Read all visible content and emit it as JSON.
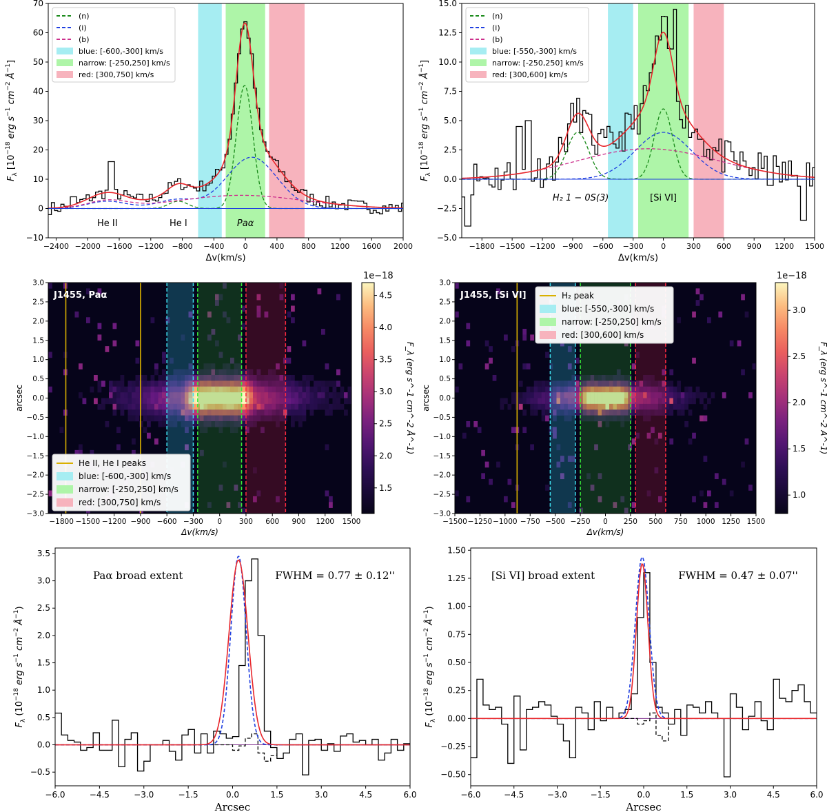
{
  "chart_data": [
    {
      "id": "p1",
      "type": "line",
      "xlabel": "Δv(km/s)",
      "ylabel": "F_λ [10^-18 erg s^-1 cm^-2 Å^-1]",
      "xlim": [
        -2500,
        2000
      ],
      "ylim": [
        -10,
        70
      ],
      "xticks": [
        -2400,
        -2000,
        -1600,
        -1200,
        -800,
        -400,
        0,
        400,
        800,
        1200,
        1600,
        2000
      ],
      "yticks": [
        -10,
        0,
        10,
        20,
        30,
        40,
        50,
        60,
        70
      ],
      "bands": [
        {
          "name": "blue",
          "range": [
            -600,
            -300
          ],
          "color": "#a6edf2"
        },
        {
          "name": "narrow",
          "range": [
            -250,
            250
          ],
          "color": "#aef5a8"
        },
        {
          "name": "red",
          "range": [
            300,
            750
          ],
          "color": "#f7b3bd"
        }
      ],
      "legend": {
        "position": "top-left",
        "entries": [
          {
            "label": "(n)",
            "kind": "dashed",
            "color": "#1a8a1a"
          },
          {
            "label": "(i)",
            "kind": "dashed",
            "color": "#1f3fe0"
          },
          {
            "label": "(b)",
            "kind": "dashed",
            "color": "#cc2f8c"
          },
          {
            "label": "blue: [-600,-300] km/s",
            "kind": "patch",
            "color": "#a6edf2"
          },
          {
            "label": "narrow: [-250,250] km/s",
            "kind": "patch",
            "color": "#aef5a8"
          },
          {
            "label": "red: [300,750] km/s",
            "kind": "patch",
            "color": "#f7b3bd"
          }
        ]
      },
      "annotations": [
        {
          "text": "He II",
          "x": -1750,
          "y": -5
        },
        {
          "text": "He I",
          "x": -850,
          "y": -5
        },
        {
          "text": "Paα",
          "x": 0,
          "y": -5
        }
      ],
      "components": [
        {
          "name": "n",
          "color": "#1a8a1a",
          "gaussians": [
            {
              "mu": -10,
              "sigma": 105,
              "amp": 42
            },
            {
              "mu": -850,
              "sigma": 120,
              "amp": 2.5
            }
          ]
        },
        {
          "name": "i",
          "color": "#1f3fe0",
          "gaussians": [
            {
              "mu": 80,
              "sigma": 320,
              "amp": 17.5
            },
            {
              "mu": -870,
              "sigma": 250,
              "amp": 3
            },
            {
              "mu": -1750,
              "sigma": 250,
              "amp": 2.5
            }
          ]
        },
        {
          "name": "b",
          "color": "#cc2f8c",
          "gaussians": [
            {
              "mu": -50,
              "sigma": 800,
              "amp": 4.5
            },
            {
              "mu": -1750,
              "sigma": 250,
              "amp": 2.5
            }
          ]
        }
      ],
      "total_color": "#e8262b",
      "data_seed": 7,
      "noise": 2.2,
      "step_width": 40,
      "data_spikes": [
        [
          -1720,
          16
        ],
        [
          -1300,
          3
        ],
        [
          -2200,
          4
        ]
      ]
    },
    {
      "id": "p2",
      "type": "line",
      "xlabel": "Δv(km/s)",
      "ylabel": "F_λ [10^-18 erg s^-1 cm^-2 Å^-1]",
      "xlim": [
        -2000,
        1500
      ],
      "ylim": [
        -5,
        15
      ],
      "xticks": [
        -1800,
        -1500,
        -1200,
        -900,
        -600,
        -300,
        0,
        300,
        600,
        900,
        1200,
        1500
      ],
      "yticks": [
        -5.0,
        -2.5,
        0.0,
        2.5,
        5.0,
        7.5,
        10.0,
        12.5,
        15.0
      ],
      "bands": [
        {
          "name": "blue",
          "range": [
            -550,
            -300
          ],
          "color": "#a6edf2"
        },
        {
          "name": "narrow",
          "range": [
            -250,
            250
          ],
          "color": "#aef5a8"
        },
        {
          "name": "red",
          "range": [
            300,
            600
          ],
          "color": "#f7b3bd"
        }
      ],
      "legend": {
        "position": "top-left",
        "entries": [
          {
            "label": "(n)",
            "kind": "dashed",
            "color": "#1a8a1a"
          },
          {
            "label": "(i)",
            "kind": "dashed",
            "color": "#1f3fe0"
          },
          {
            "label": "(b)",
            "kind": "dashed",
            "color": "#cc2f8c"
          },
          {
            "label": "blue: [-550,-300] km/s",
            "kind": "patch",
            "color": "#a6edf2"
          },
          {
            "label": "narrow: [-250,250] km/s",
            "kind": "patch",
            "color": "#aef5a8"
          },
          {
            "label": "red: [300,600] km/s",
            "kind": "patch",
            "color": "#f7b3bd"
          }
        ]
      },
      "annotations": [
        {
          "text": "H₂ 1 − 0S(3)",
          "x": -820,
          "y": -1.6
        },
        {
          "text": "[Si VI]",
          "x": 0,
          "y": -1.6
        }
      ],
      "components": [
        {
          "name": "n",
          "color": "#1a8a1a",
          "gaussians": [
            {
              "mu": 0,
              "sigma": 90,
              "amp": 6
            },
            {
              "mu": -850,
              "sigma": 110,
              "amp": 4
            }
          ]
        },
        {
          "name": "i",
          "color": "#1f3fe0",
          "gaussians": [
            {
              "mu": 0,
              "sigma": 280,
              "amp": 4
            }
          ]
        },
        {
          "name": "b",
          "color": "#cc2f8c",
          "gaussians": [
            {
              "mu": -150,
              "sigma": 700,
              "amp": 2.6
            }
          ]
        }
      ],
      "total_color": "#e8262b",
      "data_seed": 11,
      "noise": 1.6,
      "step_width": 30,
      "data_spikes": [
        [
          -1350,
          5
        ],
        [
          -1450,
          4.5
        ],
        [
          -1950,
          -4
        ],
        [
          1380,
          -3.5
        ],
        [
          100,
          14.5
        ]
      ]
    },
    {
      "id": "p3",
      "type": "heatmap",
      "title_label": "J1455, Paα",
      "xlabel": "Δv(km/s)",
      "ylabel": "arcsec",
      "xlim": [
        -1950,
        1500
      ],
      "ylim": [
        -3.0,
        3.0
      ],
      "xticks": [
        -1800,
        -1500,
        -1200,
        -900,
        -600,
        -300,
        0,
        300,
        600,
        900,
        1200,
        1500
      ],
      "yticks": [
        -3.0,
        -2.5,
        -2.0,
        -1.5,
        -1.0,
        -0.5,
        0.0,
        0.5,
        1.0,
        1.5,
        2.0,
        2.5,
        3.0
      ],
      "colorbar": {
        "exponent": "1e−18",
        "label": "F_λ (erg s^-1 cm^-2 Å^-1)",
        "ticks": [
          1.5,
          2.0,
          2.5,
          3.0,
          3.5,
          4.0,
          4.5
        ],
        "range": [
          1.1,
          4.7
        ]
      },
      "peak_lines": [
        -1750,
        -900
      ],
      "peak_line_label": "He II, He I peaks",
      "bands": [
        {
          "name": "blue",
          "range": [
            -600,
            -300
          ],
          "color": "#2cc0d8",
          "line": "#3ee0f0"
        },
        {
          "name": "narrow",
          "range": [
            -250,
            250
          ],
          "color": "#2aa52a",
          "line": "#38ef38"
        },
        {
          "name": "red",
          "range": [
            300,
            750
          ],
          "color": "#b0203c",
          "line": "#ff2a40"
        }
      ],
      "legend": {
        "position": "bottom-left",
        "entries": [
          {
            "label": "He II, He I peaks",
            "kind": "line",
            "color": "#d9b000"
          },
          {
            "label": "blue: [-600,-300] km/s",
            "kind": "patch",
            "color": "#a6edf2"
          },
          {
            "label": "narrow: [-250,250] km/s",
            "kind": "patch",
            "color": "#aef5a8"
          },
          {
            "label": "red: [300,750] km/s",
            "kind": "patch",
            "color": "#f7b3bd"
          }
        ]
      },
      "emission": {
        "center_v": 0,
        "width_v": 380,
        "wing_v": 650,
        "spatial_sigma": 0.33,
        "seed": 3
      }
    },
    {
      "id": "p4",
      "type": "heatmap",
      "title_label": "J1455, [Si VI]",
      "xlabel": "Δv(km/s)",
      "ylabel": "arcsec",
      "xlim": [
        -1500,
        1500
      ],
      "ylim": [
        -3.0,
        3.0
      ],
      "xticks": [
        -1500,
        -1250,
        -1000,
        -750,
        -500,
        -250,
        0,
        250,
        500,
        750,
        1000,
        1250,
        1500
      ],
      "yticks": [
        -3.0,
        -2.5,
        -2.0,
        -1.5,
        -1.0,
        -0.5,
        0.0,
        0.5,
        1.0,
        1.5,
        2.0,
        2.5,
        3.0
      ],
      "colorbar": {
        "exponent": "1e−18",
        "label": "F_λ (erg s^-1 cm^-2 Å^-1)",
        "ticks": [
          1.0,
          1.5,
          2.0,
          2.5,
          3.0
        ],
        "range": [
          0.8,
          3.3
        ]
      },
      "peak_lines": [
        -880
      ],
      "peak_line_label": "H₂ peak",
      "bands": [
        {
          "name": "blue",
          "range": [
            -550,
            -300
          ],
          "color": "#2cc0d8",
          "line": "#3ee0f0"
        },
        {
          "name": "narrow",
          "range": [
            -250,
            250
          ],
          "color": "#2aa52a",
          "line": "#38ef38"
        },
        {
          "name": "red",
          "range": [
            300,
            600
          ],
          "color": "#b0203c",
          "line": "#ff2a40"
        }
      ],
      "legend": {
        "position": "top-right",
        "entries": [
          {
            "label": "H₂ peak",
            "kind": "line",
            "color": "#d9b000"
          },
          {
            "label": "blue: [-550,-300] km/s",
            "kind": "patch",
            "color": "#a6edf2"
          },
          {
            "label": "narrow: [-250,250] km/s",
            "kind": "patch",
            "color": "#aef5a8"
          },
          {
            "label": "red: [300,600] km/s",
            "kind": "patch",
            "color": "#f7b3bd"
          }
        ]
      },
      "emission": {
        "center_v": 0,
        "width_v": 240,
        "wing_v": 450,
        "spatial_sigma": 0.25,
        "seed": 5
      }
    },
    {
      "id": "p5",
      "type": "line",
      "xlabel": "Arcsec",
      "ylabel": "F_λ (10^-18 erg s^-1 cm^-2 Å^-1)",
      "xlim": [
        -6.0,
        6.0
      ],
      "ylim": [
        -0.75,
        3.6
      ],
      "xticks": [
        -6.0,
        -4.5,
        -3.0,
        -1.5,
        0.0,
        1.5,
        3.0,
        4.5,
        6.0
      ],
      "yticks": [
        -0.5,
        0.0,
        0.5,
        1.0,
        1.5,
        2.0,
        2.5,
        3.0,
        3.5
      ],
      "label": "Paα broad extent",
      "fwhm": "FWHM = 0.77 ± 0.12''",
      "gauss_red": {
        "mu": 0.2,
        "sigma": 0.32,
        "amp": 3.38
      },
      "gauss_blue": {
        "mu": 0.2,
        "sigma": 0.26,
        "amp": 3.45
      },
      "profile_y": [
        0.58,
        0.18,
        0.08,
        0.05,
        -0.1,
        -0.05,
        0.22,
        -0.1,
        -0.1,
        0.45,
        -0.4,
        0.1,
        0.22,
        -0.48,
        -0.3,
        0.0,
        0.0,
        0.08,
        -0.12,
        -0.28,
        0.18,
        0.28,
        -0.15,
        0.2,
        -0.15,
        0.25,
        0.2,
        0.12,
        0.15,
        1.45,
        3.0,
        3.4,
        2.0,
        0.25,
        -0.05,
        -0.25,
        -0.15,
        0.1,
        0.2,
        -0.55,
        0.08,
        0.1,
        -0.1,
        0.02,
        -0.12,
        0.16,
        0.2,
        0.05,
        0.08,
        0.0,
        0.1,
        -0.28,
        -0.15,
        0.1,
        -0.1,
        0.02
      ],
      "residual_y": [
        0.0,
        0.0,
        0.0,
        0.0,
        0.0,
        0.0,
        0.0,
        0.0,
        0.0,
        0.0,
        0.0,
        0.0,
        0.0,
        0.0,
        0.0,
        0.0,
        0.0,
        0.0,
        0.0,
        0.0,
        0.0,
        0.0,
        0.0,
        0.0,
        0.0,
        0.0,
        0.0,
        0.0,
        -0.1,
        -0.02,
        0.12,
        0.2,
        -0.15,
        -0.3,
        -0.2,
        0.0,
        0.0,
        0.0,
        0.0,
        0.0,
        0.0,
        0.0,
        0.0,
        0.0,
        0.0,
        0.0,
        0.0,
        0.0,
        0.0,
        0.0,
        0.0,
        0.0,
        0.0,
        0.0,
        0.0,
        0.0
      ]
    },
    {
      "id": "p6",
      "type": "line",
      "xlabel": "Arcsec",
      "ylabel": "F_λ (10^-18 erg s^-1 cm^-2 Å^-1)",
      "xlim": [
        -6.0,
        6.0
      ],
      "ylim": [
        -0.6,
        1.52
      ],
      "xticks": [
        -6.0,
        -4.5,
        -3.0,
        -1.5,
        0.0,
        1.5,
        3.0,
        4.5,
        6.0
      ],
      "yticks": [
        -0.5,
        -0.25,
        0.0,
        0.25,
        0.5,
        0.75,
        1.0,
        1.25,
        1.5
      ],
      "label": "[Si VI] broad extent",
      "fwhm": "FWHM = 0.47 ± 0.07''",
      "gauss_red": {
        "mu": -0.05,
        "sigma": 0.2,
        "amp": 1.38
      },
      "gauss_blue": {
        "mu": -0.05,
        "sigma": 0.24,
        "amp": 1.44
      },
      "profile_y": [
        -0.35,
        0.35,
        0.12,
        0.08,
        0.1,
        -0.05,
        -0.4,
        0.2,
        -0.28,
        0.08,
        0.1,
        0.15,
        0.12,
        0.02,
        -0.05,
        -0.2,
        -0.35,
        0.1,
        0.05,
        -0.1,
        0.15,
        -0.02,
        0.1,
        0.0,
        0.05,
        0.08,
        0.22,
        0.9,
        1.3,
        0.5,
        0.1,
        0.05,
        -0.05,
        0.08,
        -0.15,
        0.12,
        0.1,
        0.05,
        0.15,
        0.05,
        0.0,
        -0.52,
        0.22,
        0.1,
        -0.1,
        0.02,
        0.15,
        -0.02,
        -0.1,
        0.35,
        0.18,
        0.15,
        0.25,
        0.3,
        0.15,
        0.05
      ],
      "residual_y": [
        0.0,
        0.0,
        0.0,
        0.0,
        0.0,
        0.0,
        0.0,
        0.0,
        0.0,
        0.0,
        0.0,
        0.0,
        0.0,
        0.0,
        0.0,
        0.0,
        0.0,
        0.0,
        0.0,
        0.0,
        0.0,
        0.0,
        0.0,
        0.0,
        0.0,
        0.0,
        0.0,
        -0.05,
        -0.02,
        0.05,
        -0.15,
        -0.2,
        0.0,
        0.0,
        0.0,
        0.0,
        0.0,
        0.0,
        0.0,
        0.0,
        0.0,
        0.0,
        0.0,
        0.0,
        0.0,
        0.0,
        0.0,
        0.0,
        0.0,
        0.0,
        0.0,
        0.0,
        0.0,
        0.0,
        0.0,
        0.0
      ]
    }
  ]
}
